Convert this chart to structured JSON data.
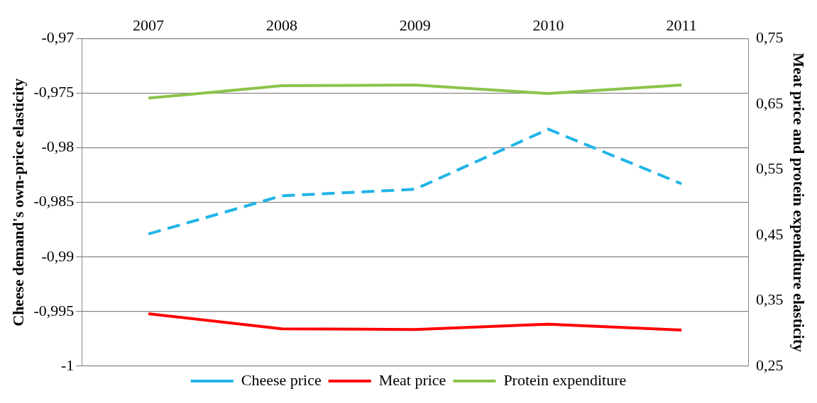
{
  "chart_data": {
    "type": "line",
    "ylabel": "Cheese demand's own-price elasticity",
    "y2label": "Meat price and protein expenditure elasticity",
    "categories": [
      "2007",
      "2008",
      "2009",
      "2010",
      "2011"
    ],
    "series": [
      {
        "name": "Cheese price",
        "color": "#1fb4e8",
        "line_style": "dashed",
        "values": [
          -0.9879,
          -0.9844,
          -0.9838,
          -0.9783,
          -0.9833
        ]
      },
      {
        "name": "Meat price",
        "color": "#ff0000",
        "axis": "y2",
        "values": [
          0.33,
          0.307,
          0.306,
          0.314,
          0.305
        ]
      },
      {
        "name": "Protein expenditure",
        "color": "#8cc34b",
        "axis": "y2",
        "values": [
          0.659,
          0.678,
          0.679,
          0.666,
          0.679
        ]
      }
    ],
    "ylim": [
      -1,
      -0.97
    ],
    "yticks": [
      {
        "value": -1,
        "label": "-1"
      },
      {
        "value": -0.995,
        "label": "-0,995"
      },
      {
        "value": -0.99,
        "label": "-0,99"
      },
      {
        "value": -0.985,
        "label": "-0,985"
      },
      {
        "value": -0.98,
        "label": "-0,98"
      },
      {
        "value": -0.975,
        "label": "-0,975"
      },
      {
        "value": -0.97,
        "label": "-0,97"
      }
    ],
    "y2lim": [
      0.25,
      0.75
    ],
    "y2ticks": [
      {
        "value": 0.25,
        "label": "0,25"
      },
      {
        "value": 0.35,
        "label": "0,35"
      },
      {
        "value": 0.45,
        "label": "0,45"
      },
      {
        "value": 0.55,
        "label": "0,55"
      },
      {
        "value": 0.65,
        "label": "0,65"
      },
      {
        "value": 0.75,
        "label": "0,75"
      }
    ],
    "grid": "y",
    "legend": "bottom",
    "marker": "none"
  }
}
